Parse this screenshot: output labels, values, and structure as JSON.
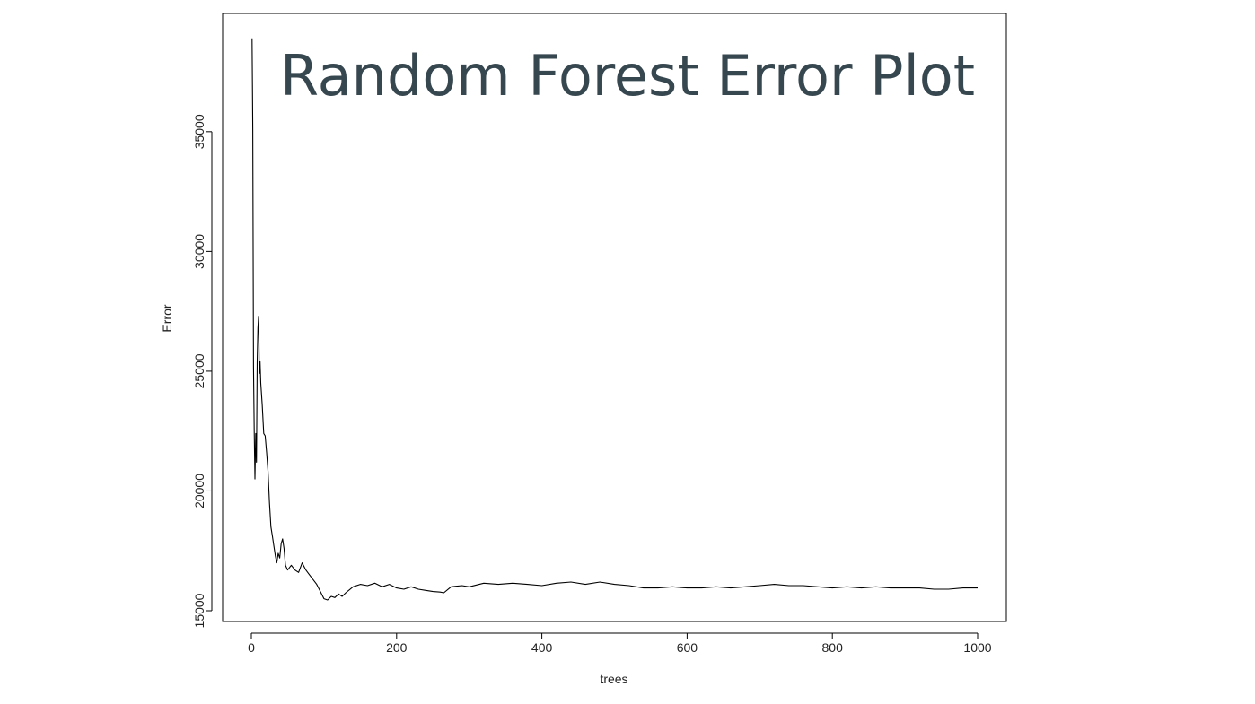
{
  "chart_data": {
    "type": "line",
    "title": "Random Forest Error Plot",
    "title_color": "#37474f",
    "xlabel": "trees",
    "ylabel": "Error",
    "xlim": [
      0,
      1000
    ],
    "ylim": [
      15000,
      39000
    ],
    "x_ticks": [
      0,
      200,
      400,
      600,
      800,
      1000
    ],
    "y_ticks": [
      15000,
      20000,
      25000,
      30000,
      35000
    ],
    "grid": false,
    "legend": "none",
    "line_color": "#000000",
    "series": [
      {
        "values": [
          [
            1,
            38900
          ],
          [
            2,
            35100
          ],
          [
            3,
            25200
          ],
          [
            4,
            22500
          ],
          [
            5,
            20500
          ],
          [
            6,
            22400
          ],
          [
            7,
            21200
          ],
          [
            8,
            25400
          ],
          [
            9,
            26800
          ],
          [
            10,
            27300
          ],
          [
            11,
            24900
          ],
          [
            12,
            25400
          ],
          [
            13,
            24500
          ],
          [
            15,
            23600
          ],
          [
            17,
            22400
          ],
          [
            19,
            22300
          ],
          [
            21,
            21600
          ],
          [
            23,
            20800
          ],
          [
            25,
            19500
          ],
          [
            27,
            18500
          ],
          [
            29,
            18100
          ],
          [
            31,
            17700
          ],
          [
            33,
            17300
          ],
          [
            35,
            17000
          ],
          [
            37,
            17400
          ],
          [
            39,
            17200
          ],
          [
            41,
            17800
          ],
          [
            43,
            18000
          ],
          [
            45,
            17600
          ],
          [
            47,
            16900
          ],
          [
            50,
            16700
          ],
          [
            55,
            16900
          ],
          [
            60,
            16700
          ],
          [
            65,
            16600
          ],
          [
            70,
            17000
          ],
          [
            75,
            16700
          ],
          [
            80,
            16500
          ],
          [
            85,
            16300
          ],
          [
            90,
            16100
          ],
          [
            95,
            15800
          ],
          [
            100,
            15500
          ],
          [
            105,
            15450
          ],
          [
            110,
            15600
          ],
          [
            115,
            15550
          ],
          [
            120,
            15700
          ],
          [
            125,
            15600
          ],
          [
            130,
            15750
          ],
          [
            140,
            16000
          ],
          [
            150,
            16100
          ],
          [
            160,
            16050
          ],
          [
            170,
            16150
          ],
          [
            180,
            16000
          ],
          [
            190,
            16100
          ],
          [
            200,
            15950
          ],
          [
            210,
            15900
          ],
          [
            220,
            16000
          ],
          [
            230,
            15900
          ],
          [
            240,
            15850
          ],
          [
            250,
            15800
          ],
          [
            260,
            15780
          ],
          [
            265,
            15750
          ],
          [
            275,
            16000
          ],
          [
            290,
            16050
          ],
          [
            300,
            16000
          ],
          [
            320,
            16150
          ],
          [
            340,
            16100
          ],
          [
            360,
            16150
          ],
          [
            380,
            16100
          ],
          [
            400,
            16050
          ],
          [
            420,
            16150
          ],
          [
            440,
            16200
          ],
          [
            460,
            16100
          ],
          [
            480,
            16200
          ],
          [
            500,
            16100
          ],
          [
            520,
            16050
          ],
          [
            540,
            15950
          ],
          [
            560,
            15950
          ],
          [
            580,
            16000
          ],
          [
            600,
            15950
          ],
          [
            620,
            15950
          ],
          [
            640,
            16000
          ],
          [
            660,
            15950
          ],
          [
            680,
            16000
          ],
          [
            700,
            16050
          ],
          [
            720,
            16100
          ],
          [
            740,
            16050
          ],
          [
            760,
            16050
          ],
          [
            780,
            16000
          ],
          [
            800,
            15950
          ],
          [
            820,
            16000
          ],
          [
            840,
            15950
          ],
          [
            860,
            16000
          ],
          [
            880,
            15950
          ],
          [
            900,
            15950
          ],
          [
            920,
            15950
          ],
          [
            940,
            15900
          ],
          [
            960,
            15900
          ],
          [
            980,
            15950
          ],
          [
            1000,
            15950
          ]
        ]
      }
    ]
  }
}
